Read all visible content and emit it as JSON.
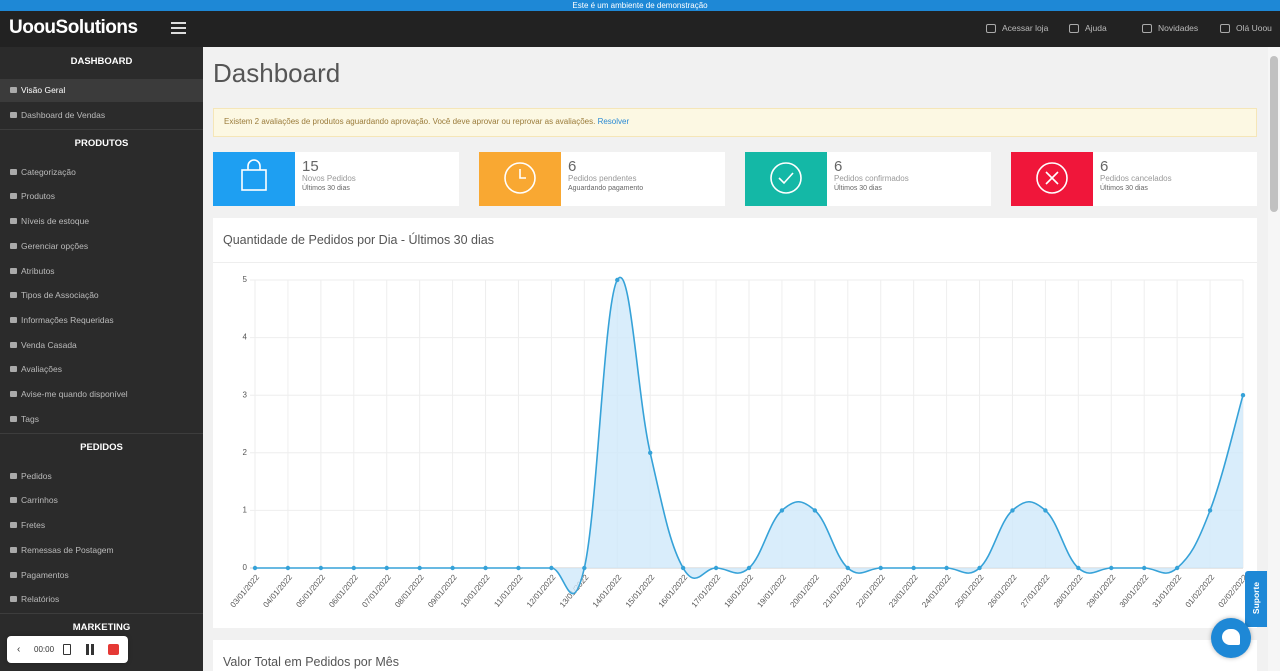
{
  "banner": "Este é um ambiente de demonstração",
  "header": {
    "logo": "UoouSolutions",
    "nav": [
      "Acessar loja",
      "Ajuda",
      "Novidades",
      "Olá Uoou"
    ]
  },
  "sidebar": {
    "sections": [
      {
        "title": "DASHBOARD",
        "items": [
          "Visão Geral",
          "Dashboard de Vendas"
        ]
      },
      {
        "title": "PRODUTOS",
        "items": [
          "Categorização",
          "Produtos",
          "Níveis de estoque",
          "Gerenciar opções",
          "Atributos",
          "Tipos de Associação",
          "Informações Requeridas",
          "Venda Casada",
          "Avaliações",
          "Avise-me quando disponível",
          "Tags"
        ]
      },
      {
        "title": "PEDIDOS",
        "items": [
          "Pedidos",
          "Carrinhos",
          "Fretes",
          "Remessas de Postagem",
          "Pagamentos",
          "Relatórios"
        ]
      },
      {
        "title": "MARKETING"
      }
    ]
  },
  "page_title": "Dashboard",
  "alert": {
    "text": "Existem 2 avaliações de produtos aguardando aprovação. Você deve aprovar ou reprovar as avaliações.",
    "link": "Resolver"
  },
  "cards": [
    {
      "value": 15,
      "label": "Novos Pedidos",
      "sub": "Últimos 30 dias",
      "color": "#1e9ff2"
    },
    {
      "value": 6,
      "label": "Pedidos pendentes",
      "sub": "Aguardando pagamento",
      "color": "#f9a832"
    },
    {
      "value": 6,
      "label": "Pedidos confirmados",
      "sub": "Últimos 30 dias",
      "color": "#14b8a6"
    },
    {
      "value": 6,
      "label": "Pedidos cancelados",
      "sub": "Últimos 30 dias",
      "color": "#f0163a"
    }
  ],
  "chart_data": {
    "type": "area",
    "title": "Quantidade de Pedidos por Dia - Últimos 30 dias",
    "categories": [
      "03/01/2022",
      "04/01/2022",
      "05/01/2022",
      "06/01/2022",
      "07/01/2022",
      "08/01/2022",
      "09/01/2022",
      "10/01/2022",
      "11/01/2022",
      "12/01/2022",
      "13/01/2022",
      "14/01/2022",
      "15/01/2022",
      "16/01/2022",
      "17/01/2022",
      "18/01/2022",
      "19/01/2022",
      "20/01/2022",
      "21/01/2022",
      "22/01/2022",
      "23/01/2022",
      "24/01/2022",
      "25/01/2022",
      "26/01/2022",
      "27/01/2022",
      "28/01/2022",
      "29/01/2022",
      "30/01/2022",
      "31/01/2022",
      "01/02/2022",
      "02/02/2022"
    ],
    "values": [
      0,
      0,
      0,
      0,
      0,
      0,
      0,
      0,
      0,
      0,
      0,
      5,
      2,
      0,
      0,
      0,
      1,
      1,
      0,
      0,
      0,
      0,
      0,
      1,
      1,
      0,
      0,
      0,
      0,
      1,
      3
    ],
    "color": "#36a2d8",
    "fill": "#cfe8fa",
    "ylim": [
      0,
      5
    ],
    "yticks": [
      0,
      1,
      2,
      3,
      4,
      5
    ],
    "grid": true
  },
  "next_panel_title": "Valor Total em Pedidos por Mês",
  "recorder": {
    "time": "00:00"
  },
  "support": "Suporte"
}
